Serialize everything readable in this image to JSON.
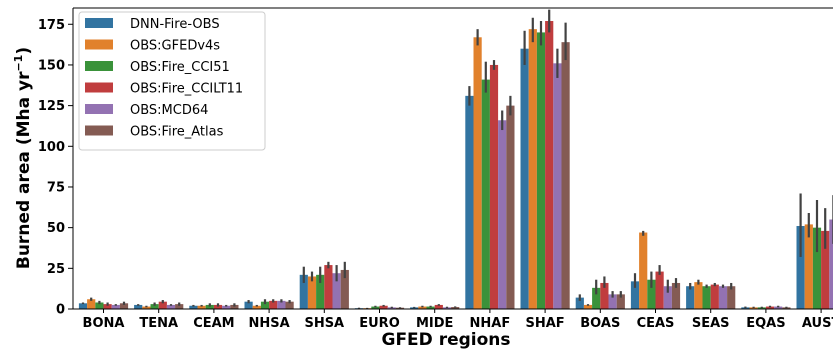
{
  "chart_data": {
    "type": "bar",
    "xlabel": "GFED regions",
    "ylabel": "Burned area (Mha yr",
    "ylabel_sup": "−1",
    "ylabel_close": ")",
    "ylim": [
      0,
      185
    ],
    "yticks": [
      0,
      25,
      50,
      75,
      100,
      125,
      150,
      175
    ],
    "legend_position": "top-left",
    "categories": [
      "BONA",
      "TENA",
      "CEAM",
      "NHSA",
      "SHSA",
      "EURO",
      "MIDE",
      "NHAF",
      "SHAF",
      "BOAS",
      "CEAS",
      "SEAS",
      "EQAS",
      "AUST"
    ],
    "series": [
      {
        "name": "DNN-Fire-OBS",
        "color": "#3274a1",
        "values": [
          3.5,
          2.5,
          2,
          4.5,
          21,
          0.5,
          1,
          131,
          160,
          7,
          17,
          14,
          1,
          51
        ],
        "err": [
          [
            3,
            4
          ],
          [
            2,
            3
          ],
          [
            1.5,
            2.5
          ],
          [
            3.5,
            5.5
          ],
          [
            16,
            26
          ],
          [
            0.3,
            0.8
          ],
          [
            0.7,
            1.3
          ],
          [
            125,
            137
          ],
          [
            150,
            171
          ],
          [
            5,
            9
          ],
          [
            13,
            22
          ],
          [
            12,
            16
          ],
          [
            0.6,
            1.5
          ],
          [
            32,
            71
          ]
        ]
      },
      {
        "name": "OBS:GFEDv4s",
        "color": "#e1812c",
        "values": [
          6,
          1.5,
          2,
          2,
          20,
          0.5,
          1.5,
          167,
          172,
          2.5,
          47,
          16.5,
          1,
          52
        ],
        "err": [
          [
            5,
            7
          ],
          [
            1,
            2
          ],
          [
            1.5,
            2.5
          ],
          [
            1.5,
            2.5
          ],
          [
            17,
            23
          ],
          [
            0.3,
            0.7
          ],
          [
            1,
            2
          ],
          [
            162,
            172
          ],
          [
            164,
            179
          ],
          [
            2,
            3
          ],
          [
            45,
            48
          ],
          [
            15,
            18
          ],
          [
            0.6,
            1.4
          ],
          [
            44,
            59
          ]
        ]
      },
      {
        "name": "OBS:Fire_CCI51",
        "color": "#3a923a",
        "values": [
          4,
          3,
          2.5,
          4.5,
          21,
          1.5,
          1.5,
          141,
          170,
          13,
          18,
          14,
          1,
          50
        ],
        "err": [
          [
            3,
            5
          ],
          [
            2,
            4
          ],
          [
            1.5,
            3.5
          ],
          [
            3,
            6
          ],
          [
            16,
            26
          ],
          [
            1,
            2
          ],
          [
            1,
            2
          ],
          [
            133,
            152
          ],
          [
            162,
            177
          ],
          [
            9,
            18
          ],
          [
            13,
            23
          ],
          [
            13,
            15
          ],
          [
            0.6,
            1.4
          ],
          [
            35,
            67
          ]
        ]
      },
      {
        "name": "OBS:Fire_CCILT11",
        "color": "#c03d3e",
        "values": [
          3,
          4.5,
          2.5,
          5,
          27,
          2,
          2.5,
          150,
          177,
          16,
          23,
          15,
          1.5,
          48
        ],
        "err": [
          [
            2,
            4
          ],
          [
            3.5,
            5.5
          ],
          [
            1.5,
            3.5
          ],
          [
            4,
            6
          ],
          [
            25,
            29
          ],
          [
            1.5,
            2.5
          ],
          [
            2,
            3
          ],
          [
            147,
            153
          ],
          [
            170,
            184
          ],
          [
            13,
            20
          ],
          [
            21,
            27
          ],
          [
            14,
            16
          ],
          [
            1,
            2
          ],
          [
            37,
            62
          ]
        ]
      },
      {
        "name": "OBS:MCD64",
        "color": "#9372b2",
        "values": [
          2.5,
          2.5,
          2,
          5,
          22,
          1,
          1,
          116,
          151,
          9,
          14,
          14,
          1.5,
          55
        ],
        "err": [
          [
            2,
            3
          ],
          [
            2,
            3
          ],
          [
            1.5,
            2.5
          ],
          [
            4,
            6
          ],
          [
            17,
            27
          ],
          [
            0.6,
            1.4
          ],
          [
            0.6,
            1.4
          ],
          [
            110,
            122
          ],
          [
            142,
            160
          ],
          [
            7,
            11
          ],
          [
            10,
            18
          ],
          [
            13,
            15
          ],
          [
            1,
            2
          ],
          [
            40,
            70
          ]
        ]
      },
      {
        "name": "OBS:Fire_Atlas",
        "color": "#845b53",
        "values": [
          3.5,
          3,
          2.5,
          4.5,
          24,
          0.8,
          1.2,
          125,
          164,
          9,
          16,
          14,
          1,
          55
        ],
        "err": [
          [
            2.5,
            4.5
          ],
          [
            2,
            4
          ],
          [
            1.5,
            3.5
          ],
          [
            3.5,
            5.5
          ],
          [
            19,
            29
          ],
          [
            0.5,
            1.1
          ],
          [
            0.8,
            1.6
          ],
          [
            119,
            131
          ],
          [
            153,
            176
          ],
          [
            7,
            11
          ],
          [
            13,
            19
          ],
          [
            12,
            16
          ],
          [
            0.6,
            1.4
          ],
          [
            35,
            76
          ]
        ]
      }
    ]
  }
}
